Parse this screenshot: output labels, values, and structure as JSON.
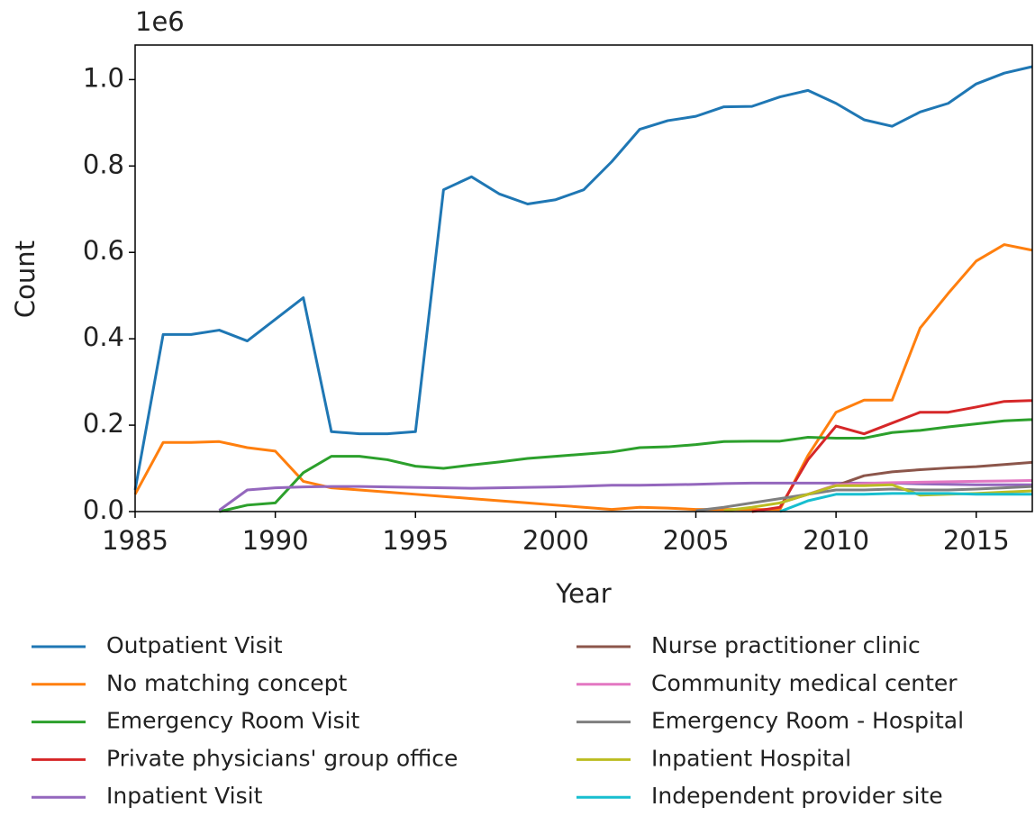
{
  "chart_data": {
    "type": "line",
    "y_label": "Count",
    "x_label": "Year",
    "y_offset_label": "1e6",
    "x": [
      1985,
      1986,
      1987,
      1988,
      1989,
      1990,
      1991,
      1992,
      1993,
      1994,
      1995,
      1996,
      1997,
      1998,
      1999,
      2000,
      2001,
      2002,
      2003,
      2004,
      2005,
      2006,
      2007,
      2008,
      2009,
      2010,
      2011,
      2012,
      2013,
      2014,
      2015,
      2016,
      2017
    ],
    "xlim": [
      1985,
      2017
    ],
    "xticks": [
      1985,
      1990,
      1995,
      2000,
      2005,
      2010,
      2015
    ],
    "ylim": [
      0,
      1.08
    ],
    "yticks": [
      {
        "value": 0,
        "label": "0.0"
      },
      0.2,
      0.4,
      0.6,
      0.8,
      {
        "value": 1,
        "label": "1.0"
      }
    ],
    "legend_loc": "below",
    "series": [
      {
        "name": "Outpatient Visit",
        "color": "#1f77b4",
        "values": [
          0.05,
          0.41,
          0.41,
          0.42,
          0.395,
          0.445,
          0.495,
          0.185,
          0.18,
          0.18,
          0.185,
          0.745,
          0.775,
          0.735,
          0.712,
          0.722,
          0.745,
          0.81,
          0.885,
          0.905,
          0.915,
          0.937,
          0.938,
          0.96,
          0.975,
          0.945,
          0.907,
          0.892,
          0.925,
          0.945,
          0.99,
          1.015,
          1.03
        ]
      },
      {
        "name": "No matching concept",
        "color": "#ff7f0e",
        "values": [
          0.04,
          0.16,
          0.16,
          0.162,
          0.148,
          0.14,
          0.07,
          0.055,
          0.05,
          0.045,
          0.04,
          0.035,
          0.03,
          0.025,
          0.02,
          0.015,
          0.01,
          0.005,
          0.01,
          0.008,
          0.005,
          0.005,
          0.005,
          0.005,
          0.13,
          0.23,
          0.258,
          0.258,
          0.425,
          0.505,
          0.58,
          0.618,
          0.605
        ]
      },
      {
        "name": "Emergency Room Visit",
        "color": "#2ca02c",
        "values": [
          null,
          null,
          null,
          0.0,
          0.015,
          0.02,
          0.09,
          0.128,
          0.128,
          0.12,
          0.105,
          0.1,
          0.108,
          0.115,
          0.123,
          0.128,
          0.133,
          0.138,
          0.148,
          0.15,
          0.155,
          0.162,
          0.163,
          0.163,
          0.172,
          0.17,
          0.17,
          0.183,
          0.188,
          0.196,
          0.203,
          0.21,
          0.213
        ]
      },
      {
        "name": "Private physicians' group office",
        "color": "#d62728",
        "values": [
          null,
          null,
          null,
          null,
          null,
          null,
          null,
          null,
          null,
          null,
          null,
          null,
          null,
          null,
          null,
          null,
          null,
          null,
          null,
          null,
          null,
          null,
          0.0,
          0.01,
          0.12,
          0.198,
          0.18,
          0.205,
          0.23,
          0.23,
          0.242,
          0.255,
          0.257
        ]
      },
      {
        "name": "Inpatient Visit",
        "color": "#9467bd",
        "values": [
          null,
          null,
          null,
          0.003,
          0.05,
          0.055,
          0.057,
          0.058,
          0.058,
          0.057,
          0.056,
          0.055,
          0.054,
          0.055,
          0.056,
          0.057,
          0.059,
          0.061,
          0.061,
          0.062,
          0.063,
          0.065,
          0.066,
          0.066,
          0.066,
          0.066,
          0.066,
          0.066,
          0.064,
          0.063,
          0.062,
          0.062,
          0.062
        ]
      },
      {
        "name": "Nurse practitioner clinic",
        "color": "#8c564b",
        "values": [
          null,
          null,
          null,
          null,
          null,
          null,
          null,
          null,
          null,
          null,
          null,
          null,
          null,
          null,
          null,
          null,
          null,
          null,
          null,
          null,
          null,
          null,
          null,
          0.02,
          0.04,
          0.06,
          0.083,
          0.092,
          0.097,
          0.101,
          0.104,
          0.109,
          0.114
        ]
      },
      {
        "name": "Community medical center",
        "color": "#e377c2",
        "values": [
          null,
          null,
          null,
          null,
          null,
          null,
          null,
          null,
          null,
          null,
          null,
          null,
          null,
          null,
          null,
          null,
          null,
          null,
          null,
          null,
          null,
          null,
          null,
          null,
          0.04,
          0.062,
          0.065,
          0.067,
          0.068,
          0.069,
          0.07,
          0.071,
          0.072
        ]
      },
      {
        "name": "Emergency Room - Hospital",
        "color": "#7f7f7f",
        "values": [
          null,
          null,
          null,
          null,
          null,
          null,
          null,
          null,
          null,
          null,
          null,
          null,
          null,
          null,
          null,
          null,
          null,
          null,
          null,
          null,
          0.002,
          0.01,
          0.02,
          0.03,
          0.04,
          0.05,
          0.05,
          0.052,
          0.05,
          0.05,
          0.052,
          0.055,
          0.058
        ]
      },
      {
        "name": "Inpatient Hospital",
        "color": "#bcbd22",
        "values": [
          null,
          null,
          null,
          null,
          null,
          null,
          null,
          null,
          null,
          null,
          null,
          null,
          null,
          null,
          null,
          null,
          null,
          null,
          null,
          null,
          null,
          0.002,
          0.01,
          0.02,
          0.04,
          0.06,
          0.06,
          0.062,
          0.038,
          0.04,
          0.042,
          0.045,
          0.048
        ]
      },
      {
        "name": "Independent provider site",
        "color": "#17becf",
        "values": [
          null,
          null,
          null,
          null,
          null,
          null,
          null,
          null,
          null,
          null,
          null,
          null,
          null,
          null,
          null,
          null,
          null,
          null,
          null,
          null,
          null,
          null,
          null,
          0.0,
          0.025,
          0.04,
          0.04,
          0.042,
          0.042,
          0.042,
          0.04,
          0.04,
          0.04
        ]
      }
    ]
  }
}
